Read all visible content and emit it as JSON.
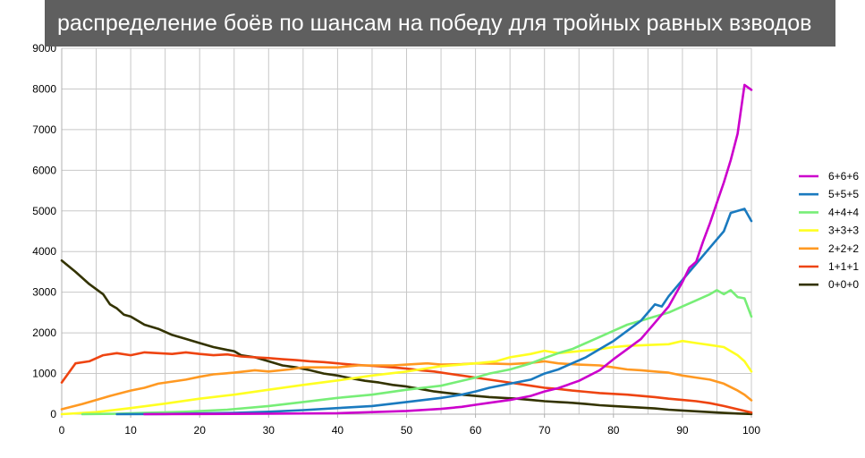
{
  "chart_data": {
    "type": "line",
    "title": "распределение боёв по шансам на победу для тройных равных взводов",
    "xlabel": "",
    "ylabel": "",
    "xlim": [
      0,
      100
    ],
    "ylim": [
      0,
      9000
    ],
    "x_ticks": [
      "0",
      "10",
      "20",
      "30",
      "40",
      "50",
      "60",
      "70",
      "80",
      "90",
      "100"
    ],
    "y_ticks": [
      "0",
      "1000",
      "2000",
      "3000",
      "4000",
      "5000",
      "6000",
      "7000",
      "8000",
      "9000"
    ],
    "grid": true,
    "legend_position": "right",
    "series": [
      {
        "name": "6+6+6",
        "color": "#cc00cc",
        "points": [
          [
            12,
            0
          ],
          [
            20,
            5
          ],
          [
            30,
            10
          ],
          [
            40,
            25
          ],
          [
            45,
            50
          ],
          [
            50,
            80
          ],
          [
            55,
            130
          ],
          [
            58,
            180
          ],
          [
            60,
            230
          ],
          [
            62,
            280
          ],
          [
            65,
            350
          ],
          [
            68,
            450
          ],
          [
            70,
            560
          ],
          [
            72,
            640
          ],
          [
            75,
            820
          ],
          [
            78,
            1080
          ],
          [
            80,
            1350
          ],
          [
            82,
            1600
          ],
          [
            84,
            1850
          ],
          [
            85,
            2050
          ],
          [
            86,
            2250
          ],
          [
            88,
            2650
          ],
          [
            89,
            2950
          ],
          [
            90,
            3250
          ],
          [
            91,
            3600
          ],
          [
            92,
            3750
          ],
          [
            93,
            4250
          ],
          [
            94,
            4700
          ],
          [
            95,
            5200
          ],
          [
            96,
            5700
          ],
          [
            97,
            6250
          ],
          [
            98,
            6900
          ],
          [
            99,
            8100
          ],
          [
            100,
            7980
          ]
        ]
      },
      {
        "name": "5+5+5",
        "color": "#1a7abf",
        "points": [
          [
            8,
            0
          ],
          [
            15,
            5
          ],
          [
            25,
            30
          ],
          [
            30,
            60
          ],
          [
            35,
            100
          ],
          [
            40,
            150
          ],
          [
            45,
            200
          ],
          [
            50,
            300
          ],
          [
            55,
            400
          ],
          [
            58,
            480
          ],
          [
            60,
            560
          ],
          [
            62,
            650
          ],
          [
            65,
            750
          ],
          [
            68,
            850
          ],
          [
            70,
            1000
          ],
          [
            72,
            1100
          ],
          [
            74,
            1250
          ],
          [
            76,
            1400
          ],
          [
            78,
            1600
          ],
          [
            80,
            1800
          ],
          [
            82,
            2050
          ],
          [
            84,
            2300
          ],
          [
            85,
            2500
          ],
          [
            86,
            2700
          ],
          [
            87,
            2650
          ],
          [
            88,
            2900
          ],
          [
            90,
            3300
          ],
          [
            92,
            3700
          ],
          [
            94,
            4100
          ],
          [
            96,
            4500
          ],
          [
            97,
            4950
          ],
          [
            98,
            5000
          ],
          [
            99,
            5050
          ],
          [
            100,
            4750
          ]
        ]
      },
      {
        "name": "4+4+4",
        "color": "#77ee77",
        "points": [
          [
            3,
            0
          ],
          [
            8,
            10
          ],
          [
            12,
            30
          ],
          [
            18,
            60
          ],
          [
            24,
            110
          ],
          [
            30,
            200
          ],
          [
            35,
            300
          ],
          [
            40,
            400
          ],
          [
            45,
            480
          ],
          [
            50,
            600
          ],
          [
            55,
            700
          ],
          [
            60,
            900
          ],
          [
            62,
            1000
          ],
          [
            65,
            1100
          ],
          [
            68,
            1250
          ],
          [
            70,
            1380
          ],
          [
            72,
            1500
          ],
          [
            74,
            1600
          ],
          [
            76,
            1750
          ],
          [
            78,
            1900
          ],
          [
            80,
            2050
          ],
          [
            82,
            2200
          ],
          [
            84,
            2300
          ],
          [
            86,
            2400
          ],
          [
            88,
            2500
          ],
          [
            90,
            2650
          ],
          [
            92,
            2800
          ],
          [
            94,
            2950
          ],
          [
            95,
            3050
          ],
          [
            96,
            2950
          ],
          [
            97,
            3050
          ],
          [
            98,
            2880
          ],
          [
            99,
            2850
          ],
          [
            100,
            2400
          ]
        ]
      },
      {
        "name": "3+3+3",
        "color": "#ffff22",
        "points": [
          [
            0,
            0
          ],
          [
            5,
            50
          ],
          [
            10,
            150
          ],
          [
            15,
            260
          ],
          [
            20,
            380
          ],
          [
            25,
            480
          ],
          [
            30,
            600
          ],
          [
            35,
            720
          ],
          [
            40,
            830
          ],
          [
            45,
            950
          ],
          [
            50,
            1050
          ],
          [
            55,
            1180
          ],
          [
            60,
            1250
          ],
          [
            63,
            1300
          ],
          [
            65,
            1400
          ],
          [
            68,
            1480
          ],
          [
            70,
            1560
          ],
          [
            72,
            1500
          ],
          [
            75,
            1550
          ],
          [
            78,
            1600
          ],
          [
            80,
            1650
          ],
          [
            82,
            1680
          ],
          [
            85,
            1700
          ],
          [
            88,
            1720
          ],
          [
            90,
            1800
          ],
          [
            92,
            1750
          ],
          [
            94,
            1700
          ],
          [
            96,
            1650
          ],
          [
            98,
            1450
          ],
          [
            99,
            1300
          ],
          [
            100,
            1050
          ]
        ]
      },
      {
        "name": "2+2+2",
        "color": "#ff9922",
        "points": [
          [
            0,
            120
          ],
          [
            3,
            250
          ],
          [
            5,
            350
          ],
          [
            7,
            450
          ],
          [
            10,
            580
          ],
          [
            12,
            650
          ],
          [
            14,
            750
          ],
          [
            16,
            800
          ],
          [
            18,
            850
          ],
          [
            20,
            920
          ],
          [
            22,
            980
          ],
          [
            25,
            1020
          ],
          [
            28,
            1080
          ],
          [
            30,
            1050
          ],
          [
            33,
            1100
          ],
          [
            35,
            1150
          ],
          [
            38,
            1150
          ],
          [
            40,
            1150
          ],
          [
            43,
            1200
          ],
          [
            45,
            1200
          ],
          [
            48,
            1200
          ],
          [
            50,
            1220
          ],
          [
            53,
            1250
          ],
          [
            55,
            1220
          ],
          [
            58,
            1230
          ],
          [
            60,
            1250
          ],
          [
            63,
            1240
          ],
          [
            65,
            1230
          ],
          [
            68,
            1260
          ],
          [
            70,
            1300
          ],
          [
            72,
            1250
          ],
          [
            75,
            1220
          ],
          [
            78,
            1200
          ],
          [
            80,
            1150
          ],
          [
            82,
            1100
          ],
          [
            84,
            1080
          ],
          [
            86,
            1050
          ],
          [
            88,
            1020
          ],
          [
            90,
            950
          ],
          [
            92,
            900
          ],
          [
            94,
            850
          ],
          [
            96,
            750
          ],
          [
            98,
            580
          ],
          [
            99,
            480
          ],
          [
            100,
            340
          ]
        ]
      },
      {
        "name": "1+1+1",
        "color": "#ee4411",
        "points": [
          [
            0,
            780
          ],
          [
            2,
            1250
          ],
          [
            4,
            1300
          ],
          [
            6,
            1450
          ],
          [
            8,
            1500
          ],
          [
            10,
            1450
          ],
          [
            12,
            1520
          ],
          [
            14,
            1500
          ],
          [
            16,
            1480
          ],
          [
            18,
            1520
          ],
          [
            20,
            1480
          ],
          [
            22,
            1450
          ],
          [
            24,
            1470
          ],
          [
            26,
            1420
          ],
          [
            28,
            1400
          ],
          [
            30,
            1380
          ],
          [
            32,
            1350
          ],
          [
            34,
            1330
          ],
          [
            36,
            1300
          ],
          [
            38,
            1280
          ],
          [
            40,
            1250
          ],
          [
            42,
            1220
          ],
          [
            44,
            1200
          ],
          [
            46,
            1180
          ],
          [
            48,
            1150
          ],
          [
            50,
            1120
          ],
          [
            52,
            1080
          ],
          [
            54,
            1050
          ],
          [
            56,
            1000
          ],
          [
            58,
            950
          ],
          [
            60,
            900
          ],
          [
            62,
            850
          ],
          [
            64,
            800
          ],
          [
            66,
            750
          ],
          [
            68,
            700
          ],
          [
            70,
            650
          ],
          [
            72,
            620
          ],
          [
            74,
            580
          ],
          [
            76,
            550
          ],
          [
            78,
            520
          ],
          [
            80,
            500
          ],
          [
            82,
            480
          ],
          [
            84,
            450
          ],
          [
            86,
            420
          ],
          [
            88,
            380
          ],
          [
            90,
            350
          ],
          [
            92,
            320
          ],
          [
            94,
            270
          ],
          [
            96,
            200
          ],
          [
            98,
            120
          ],
          [
            100,
            40
          ]
        ]
      },
      {
        "name": "0+0+0",
        "color": "#333300",
        "points": [
          [
            0,
            3780
          ],
          [
            2,
            3500
          ],
          [
            4,
            3200
          ],
          [
            6,
            2950
          ],
          [
            7,
            2700
          ],
          [
            8,
            2600
          ],
          [
            9,
            2450
          ],
          [
            10,
            2400
          ],
          [
            12,
            2200
          ],
          [
            14,
            2100
          ],
          [
            16,
            1950
          ],
          [
            18,
            1850
          ],
          [
            20,
            1750
          ],
          [
            22,
            1650
          ],
          [
            24,
            1580
          ],
          [
            25,
            1550
          ],
          [
            26,
            1450
          ],
          [
            28,
            1400
          ],
          [
            30,
            1300
          ],
          [
            32,
            1200
          ],
          [
            34,
            1150
          ],
          [
            36,
            1080
          ],
          [
            38,
            1000
          ],
          [
            40,
            950
          ],
          [
            42,
            880
          ],
          [
            44,
            820
          ],
          [
            46,
            780
          ],
          [
            48,
            720
          ],
          [
            50,
            680
          ],
          [
            52,
            620
          ],
          [
            54,
            560
          ],
          [
            56,
            520
          ],
          [
            58,
            480
          ],
          [
            60,
            450
          ],
          [
            62,
            420
          ],
          [
            64,
            400
          ],
          [
            66,
            380
          ],
          [
            68,
            350
          ],
          [
            70,
            320
          ],
          [
            72,
            300
          ],
          [
            74,
            280
          ],
          [
            76,
            250
          ],
          [
            78,
            220
          ],
          [
            80,
            200
          ],
          [
            82,
            180
          ],
          [
            84,
            160
          ],
          [
            86,
            140
          ],
          [
            88,
            110
          ],
          [
            90,
            90
          ],
          [
            92,
            70
          ],
          [
            94,
            50
          ],
          [
            96,
            30
          ],
          [
            98,
            15
          ],
          [
            100,
            5
          ]
        ]
      }
    ]
  }
}
